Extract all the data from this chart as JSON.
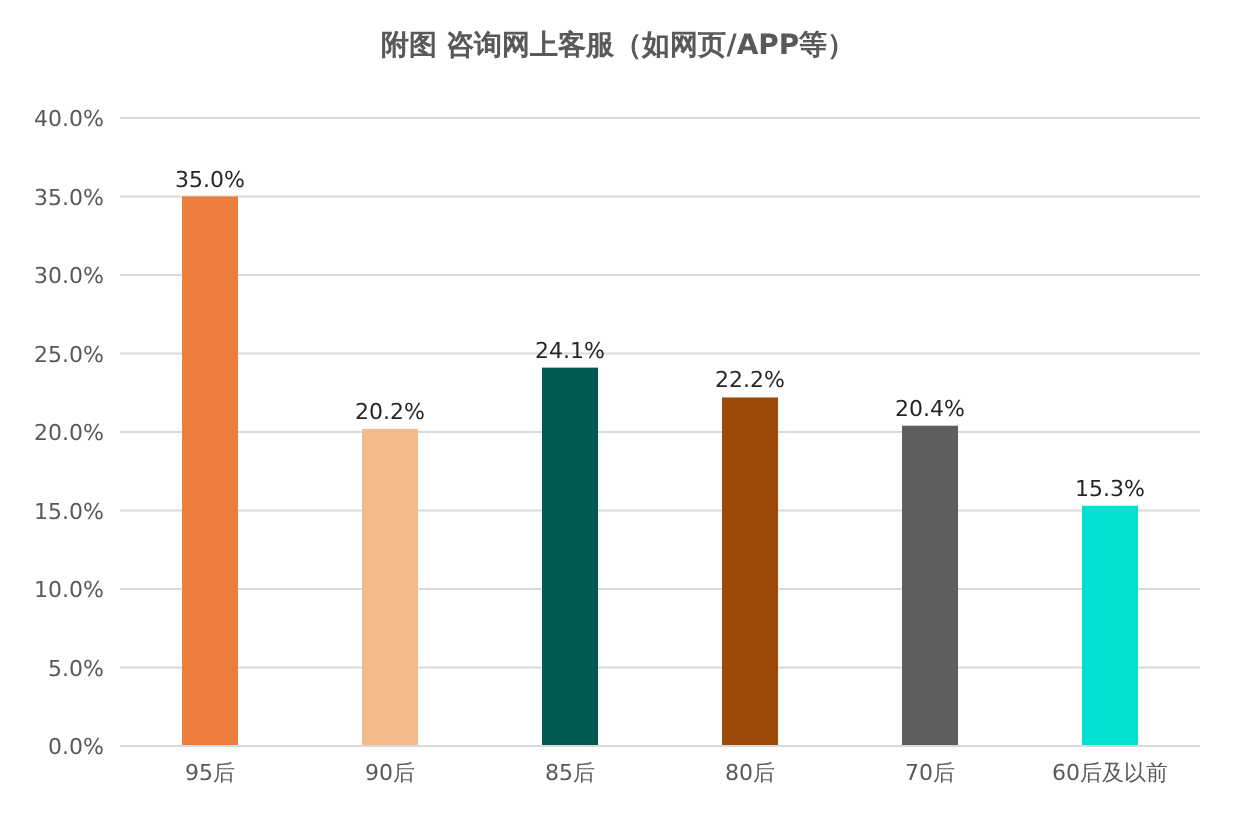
{
  "chart_data": {
    "type": "bar",
    "title": "附图 咨询网上客服（如网页/APP等）",
    "categories": [
      "95后",
      "90后",
      "85后",
      "80后",
      "70后",
      "60后及以前"
    ],
    "values": [
      35.0,
      20.2,
      24.1,
      22.2,
      20.4,
      15.3
    ],
    "colors": [
      "#ed7d3b",
      "#f2bc8a",
      "#005c50",
      "#9c4a08",
      "#5e5e5e",
      "#00e0d0"
    ],
    "value_labels": [
      "35.0%",
      "20.2%",
      "24.1%",
      "22.2%",
      "20.4%",
      "15.3%"
    ],
    "ylim": [
      0,
      40
    ],
    "yticks": [
      {
        "value": 0,
        "label": "0.0%"
      },
      {
        "value": 5,
        "label": "5.0%"
      },
      {
        "value": 10,
        "label": "10.0%"
      },
      {
        "value": 15,
        "label": "15.0%"
      },
      {
        "value": 20,
        "label": "20.0%"
      },
      {
        "value": 25,
        "label": "25.0%"
      },
      {
        "value": 30,
        "label": "30.0%"
      },
      {
        "value": 35,
        "label": "35.0%"
      },
      {
        "value": 40,
        "label": "40.0%"
      }
    ],
    "grid": "y"
  }
}
